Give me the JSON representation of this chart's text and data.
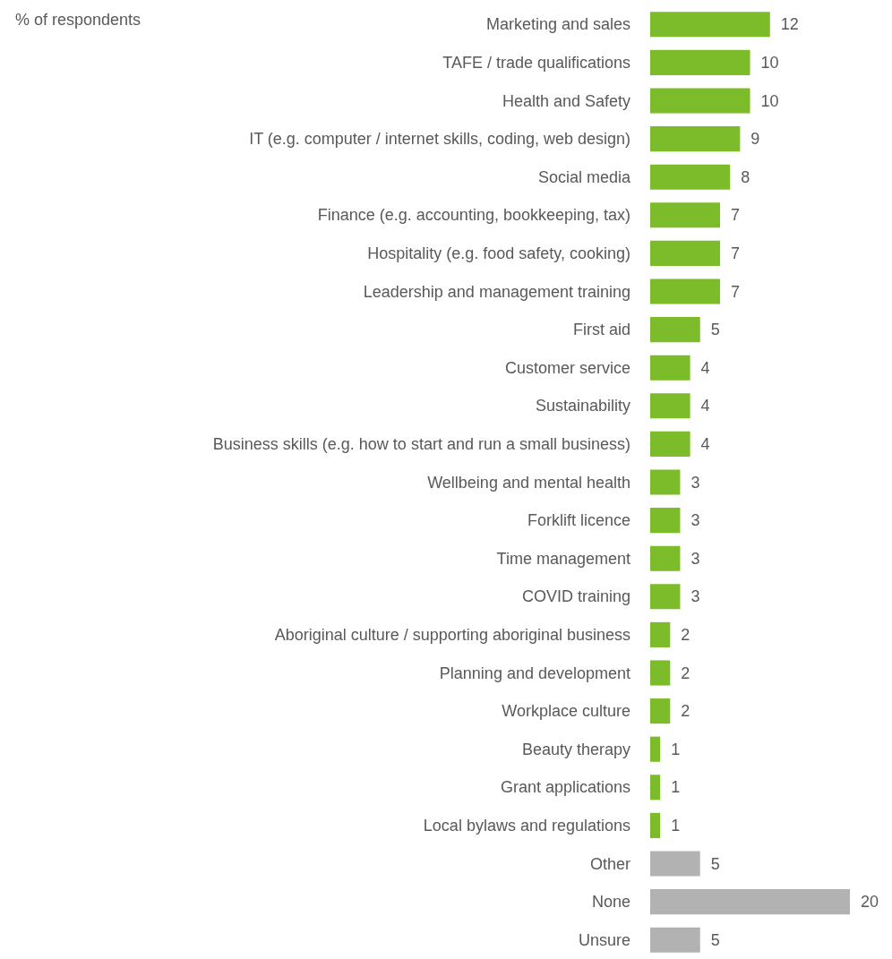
{
  "chart_data": {
    "type": "bar",
    "orientation": "horizontal",
    "title": "% of respondents",
    "categories": [
      "Marketing and sales",
      "TAFE / trade qualifications",
      "Health and Safety",
      "IT (e.g. computer / internet skills, coding, web design)",
      "Social media",
      "Finance (e.g. accounting, bookkeeping, tax)",
      "Hospitality (e.g. food safety, cooking)",
      "Leadership and management training",
      "First aid",
      "Customer service",
      "Sustainability",
      "Business skills (e.g. how to start and run a small business)",
      "Wellbeing and mental health",
      "Forklift licence",
      "Time management",
      "COVID training",
      "Aboriginal culture / supporting aboriginal business",
      "Planning and development",
      "Workplace culture",
      "Beauty therapy",
      "Grant applications",
      "Local bylaws and regulations",
      "Other",
      "None",
      "Unsure"
    ],
    "values": [
      12,
      10,
      10,
      9,
      8,
      7,
      7,
      7,
      5,
      4,
      4,
      4,
      3,
      3,
      3,
      3,
      2,
      2,
      2,
      1,
      1,
      1,
      5,
      20,
      5
    ],
    "colors": [
      "#7cbb2a",
      "#7cbb2a",
      "#7cbb2a",
      "#7cbb2a",
      "#7cbb2a",
      "#7cbb2a",
      "#7cbb2a",
      "#7cbb2a",
      "#7cbb2a",
      "#7cbb2a",
      "#7cbb2a",
      "#7cbb2a",
      "#7cbb2a",
      "#7cbb2a",
      "#7cbb2a",
      "#7cbb2a",
      "#7cbb2a",
      "#7cbb2a",
      "#7cbb2a",
      "#7cbb2a",
      "#7cbb2a",
      "#7cbb2a",
      "#b2b2b2",
      "#b2b2b2",
      "#b2b2b2"
    ],
    "data_labels": true
  }
}
